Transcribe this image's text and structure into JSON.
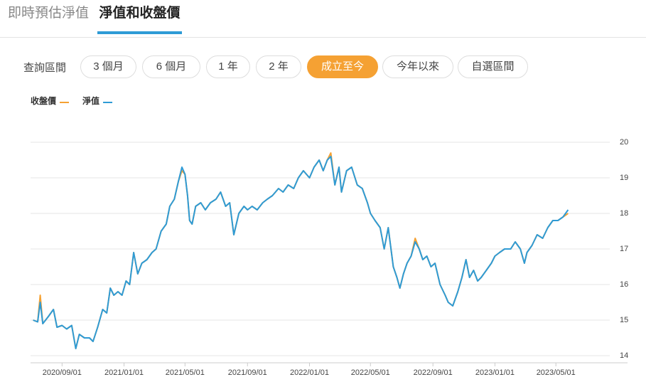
{
  "tabs": {
    "items": [
      "即時預估淨值",
      "淨值和收盤價"
    ],
    "active": 1
  },
  "filter": {
    "label": "查詢區間",
    "options": [
      "3 個月",
      "6 個月",
      "1 年",
      "2 年",
      "成立至今",
      "今年以來",
      "自選區間"
    ],
    "active": 4
  },
  "chart_data": {
    "type": "line",
    "x": [
      "2020/07/06",
      "2020/07/15",
      "2020/07/20",
      "2020/07/25",
      "2020/08/05",
      "2020/08/15",
      "2020/08/22",
      "2020/09/01",
      "2020/09/10",
      "2020/09/20",
      "2020/09/28",
      "2020/10/05",
      "2020/10/15",
      "2020/10/25",
      "2020/11/01",
      "2020/11/10",
      "2020/11/20",
      "2020/11/28",
      "2020/12/05",
      "2020/12/12",
      "2020/12/20",
      "2020/12/28",
      "2021/01/05",
      "2021/01/12",
      "2021/01/20",
      "2021/01/28",
      "2021/02/05",
      "2021/02/15",
      "2021/02/25",
      "2021/03/05",
      "2021/03/15",
      "2021/03/25",
      "2021/04/01",
      "2021/04/10",
      "2021/04/18",
      "2021/04/25",
      "2021/05/01",
      "2021/05/06",
      "2021/05/10",
      "2021/05/15",
      "2021/05/22",
      "2021/06/01",
      "2021/06/10",
      "2021/06/20",
      "2021/07/01",
      "2021/07/10",
      "2021/07/20",
      "2021/07/28",
      "2021/08/05",
      "2021/08/15",
      "2021/08/25",
      "2021/09/01",
      "2021/09/10",
      "2021/09/20",
      "2021/10/01",
      "2021/10/10",
      "2021/10/20",
      "2021/11/01",
      "2021/11/10",
      "2021/11/20",
      "2021/12/01",
      "2021/12/10",
      "2021/12/20",
      "2022/01/01",
      "2022/01/10",
      "2022/01/20",
      "2022/01/28",
      "2022/02/05",
      "2022/02/12",
      "2022/02/20",
      "2022/02/28",
      "2022/03/05",
      "2022/03/15",
      "2022/03/25",
      "2022/04/05",
      "2022/04/15",
      "2022/04/25",
      "2022/05/01",
      "2022/05/10",
      "2022/05/20",
      "2022/05/28",
      "2022/06/05",
      "2022/06/15",
      "2022/06/22",
      "2022/06/28",
      "2022/07/05",
      "2022/07/12",
      "2022/07/20",
      "2022/07/28",
      "2022/08/05",
      "2022/08/12",
      "2022/08/20",
      "2022/08/28",
      "2022/09/05",
      "2022/09/15",
      "2022/09/25",
      "2022/10/01",
      "2022/10/10",
      "2022/10/20",
      "2022/10/28",
      "2022/11/05",
      "2022/11/12",
      "2022/11/20",
      "2022/11/28",
      "2022/12/05",
      "2022/12/15",
      "2022/12/25",
      "2023/01/01",
      "2023/01/10",
      "2023/01/20",
      "2023/02/01",
      "2023/02/10",
      "2023/02/20",
      "2023/02/28",
      "2023/03/05",
      "2023/03/15",
      "2023/03/25",
      "2023/04/05",
      "2023/04/15",
      "2023/04/25",
      "2023/05/05",
      "2023/05/15",
      "2023/05/25"
    ],
    "series": [
      {
        "name": "收盤價",
        "color": "#f5a133",
        "values": [
          15.0,
          14.95,
          15.7,
          14.9,
          15.1,
          15.3,
          14.8,
          14.85,
          14.75,
          14.85,
          14.2,
          14.6,
          14.5,
          14.5,
          14.4,
          14.8,
          15.3,
          15.2,
          15.9,
          15.7,
          15.8,
          15.7,
          16.1,
          16.0,
          16.9,
          16.3,
          16.6,
          16.7,
          16.9,
          17.0,
          17.5,
          17.7,
          18.2,
          18.4,
          18.9,
          19.2,
          19.1,
          18.5,
          17.8,
          17.7,
          18.2,
          18.3,
          18.1,
          18.3,
          18.4,
          18.6,
          18.2,
          18.3,
          17.4,
          18.0,
          18.2,
          18.1,
          18.2,
          18.1,
          18.3,
          18.4,
          18.5,
          18.7,
          18.6,
          18.8,
          18.7,
          19.0,
          19.2,
          19.0,
          19.3,
          19.5,
          19.2,
          19.5,
          19.7,
          18.8,
          19.3,
          18.6,
          19.2,
          19.3,
          18.8,
          18.7,
          18.3,
          18.0,
          17.8,
          17.6,
          17.0,
          17.6,
          16.5,
          16.2,
          15.9,
          16.3,
          16.6,
          16.8,
          17.3,
          17.0,
          16.7,
          16.8,
          16.5,
          16.6,
          16.0,
          15.7,
          15.5,
          15.4,
          15.8,
          16.2,
          16.7,
          16.2,
          16.4,
          16.1,
          16.2,
          16.4,
          16.6,
          16.8,
          16.9,
          17.0,
          17.0,
          17.2,
          17.0,
          16.6,
          16.9,
          17.1,
          17.4,
          17.3,
          17.6,
          17.8,
          17.8,
          17.9,
          18.0
        ]
      },
      {
        "name": "淨值",
        "color": "#2e9bd6",
        "values": [
          15.0,
          14.95,
          15.5,
          14.9,
          15.1,
          15.3,
          14.8,
          14.85,
          14.75,
          14.85,
          14.2,
          14.6,
          14.5,
          14.5,
          14.4,
          14.8,
          15.3,
          15.2,
          15.9,
          15.7,
          15.8,
          15.7,
          16.1,
          16.0,
          16.9,
          16.3,
          16.6,
          16.7,
          16.9,
          17.0,
          17.5,
          17.7,
          18.2,
          18.4,
          18.9,
          19.3,
          19.1,
          18.5,
          17.8,
          17.7,
          18.2,
          18.3,
          18.1,
          18.3,
          18.4,
          18.6,
          18.2,
          18.3,
          17.4,
          18.0,
          18.2,
          18.1,
          18.2,
          18.1,
          18.3,
          18.4,
          18.5,
          18.7,
          18.6,
          18.8,
          18.7,
          19.0,
          19.2,
          19.0,
          19.3,
          19.5,
          19.2,
          19.5,
          19.6,
          18.8,
          19.3,
          18.6,
          19.2,
          19.3,
          18.8,
          18.7,
          18.3,
          18.0,
          17.8,
          17.6,
          17.0,
          17.6,
          16.5,
          16.2,
          15.9,
          16.3,
          16.6,
          16.8,
          17.2,
          17.0,
          16.7,
          16.8,
          16.5,
          16.6,
          16.0,
          15.7,
          15.5,
          15.4,
          15.8,
          16.2,
          16.7,
          16.2,
          16.4,
          16.1,
          16.2,
          16.4,
          16.6,
          16.8,
          16.9,
          17.0,
          17.0,
          17.2,
          17.0,
          16.6,
          16.9,
          17.1,
          17.4,
          17.3,
          17.6,
          17.8,
          17.8,
          17.9,
          18.1
        ]
      }
    ],
    "xlim": [
      "2020/07/01",
      "2023/08/15"
    ],
    "xticks": [
      "2020/09/01",
      "2021/01/01",
      "2021/05/01",
      "2021/09/01",
      "2022/01/01",
      "2022/05/01",
      "2022/09/01",
      "2023/01/01",
      "2023/05/01"
    ],
    "ylim": [
      13.8,
      20.2
    ],
    "yticks": [
      14,
      15,
      16,
      17,
      18,
      19,
      20
    ],
    "grid": true,
    "legend": "top-left"
  }
}
